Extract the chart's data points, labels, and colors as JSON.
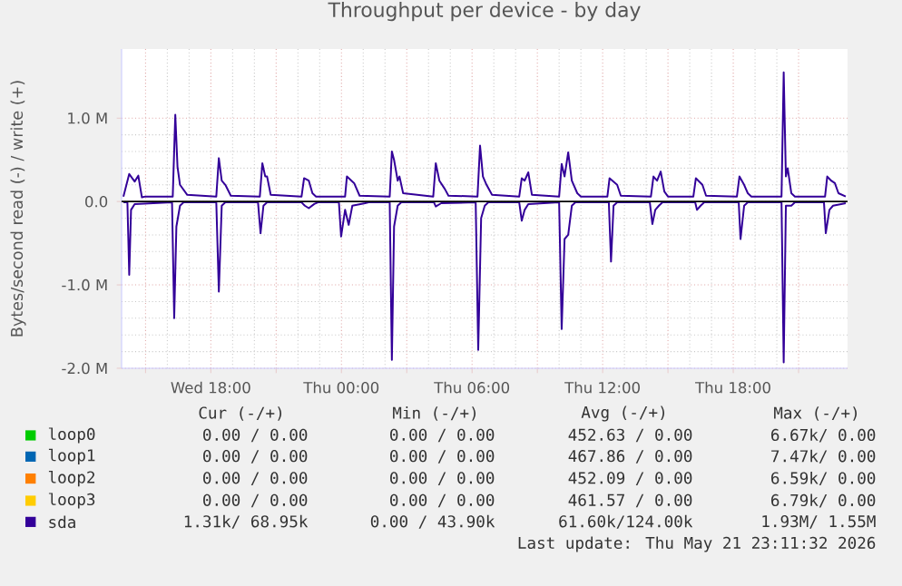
{
  "chart_data": {
    "type": "line",
    "title": "Throughput per device - by day",
    "ylabel": "Bytes/second read (-) / write (+)",
    "xlim": [
      "2026-05-20T13:54",
      "2026-05-21T23:15"
    ],
    "ylim": [
      -2000000,
      1830000
    ],
    "xticks": [
      {
        "value": "2026-05-20T15:00",
        "label": null
      },
      {
        "value": "2026-05-20T18:00",
        "label": "Wed 18:00"
      },
      {
        "value": "2026-05-20T21:00",
        "label": null
      },
      {
        "value": "2026-05-21T00:00",
        "label": "Thu 00:00"
      },
      {
        "value": "2026-05-21T03:00",
        "label": null
      },
      {
        "value": "2026-05-21T06:00",
        "label": "Thu 06:00"
      },
      {
        "value": "2026-05-21T09:00",
        "label": null
      },
      {
        "value": "2026-05-21T12:00",
        "label": "Thu 12:00"
      },
      {
        "value": "2026-05-21T15:00",
        "label": null
      },
      {
        "value": "2026-05-21T18:00",
        "label": "Thu 18:00"
      },
      {
        "value": "2026-05-21T21:00",
        "label": null
      }
    ],
    "yticks": [
      {
        "value": -2000000,
        "label": "-2.0 M"
      },
      {
        "value": -1000000,
        "label": "-1.0 M"
      },
      {
        "value": 0,
        "label": "0.0"
      },
      {
        "value": 1000000,
        "label": "1.0 M"
      }
    ],
    "grid": true,
    "legend": "bottom left",
    "ref_lines": [
      {
        "axis": "y",
        "value": 0,
        "color": "#000000"
      }
    ],
    "series": [
      {
        "name": "loop0",
        "color": "#00cc00"
      },
      {
        "name": "loop1",
        "color": "#0066b3"
      },
      {
        "name": "loop2",
        "color": "#ff8000"
      },
      {
        "name": "loop3",
        "color": "#ffcc00"
      },
      {
        "color": "#330099",
        "x": [
          "2026-05-20T13:59",
          "2026-05-20T14:10",
          "2026-05-20T14:15",
          "2026-05-20T14:20",
          "2026-05-20T14:30",
          "2026-05-20T16:13",
          "2026-05-20T16:19",
          "2026-05-20T16:25",
          "2026-05-20T16:35",
          "2026-05-20T16:45",
          "2026-05-20T18:15",
          "2026-05-20T18:22",
          "2026-05-20T18:30",
          "2026-05-20T18:40",
          "2026-05-20T20:10",
          "2026-05-20T20:17",
          "2026-05-20T20:25",
          "2026-05-20T20:35",
          "2026-05-20T22:10",
          "2026-05-20T22:19",
          "2026-05-20T22:30",
          "2026-05-20T22:45",
          "2026-05-20T22:55",
          "2026-05-20T23:53",
          "2026-05-20T23:59",
          "2026-05-21T00:10",
          "2026-05-21T00:20",
          "2026-05-21T00:30",
          "2026-05-21T01:05",
          "2026-05-21T01:15",
          "2026-05-21T02:13",
          "2026-05-21T02:19",
          "2026-05-21T02:25",
          "2026-05-21T02:35",
          "2026-05-21T02:45",
          "2026-05-21T04:15",
          "2026-05-21T04:20",
          "2026-05-21T04:35",
          "2026-05-21T06:10",
          "2026-05-21T06:17",
          "2026-05-21T06:25",
          "2026-05-21T06:35",
          "2026-05-21T06:45",
          "2026-05-21T08:10",
          "2026-05-21T08:17",
          "2026-05-21T08:25",
          "2026-05-21T08:35",
          "2026-05-21T10:00",
          "2026-05-21T10:07",
          "2026-05-21T10:15",
          "2026-05-21T10:25",
          "2026-05-21T10:35",
          "2026-05-21T10:45",
          "2026-05-21T12:17",
          "2026-05-21T12:23",
          "2026-05-21T12:30",
          "2026-05-21T12:40",
          "2026-05-21T14:10",
          "2026-05-21T14:17",
          "2026-05-21T14:25",
          "2026-05-21T14:35",
          "2026-05-21T14:45",
          "2026-05-21T16:15",
          "2026-05-21T16:20",
          "2026-05-21T16:30",
          "2026-05-21T16:40",
          "2026-05-21T18:15",
          "2026-05-21T18:20",
          "2026-05-21T18:30",
          "2026-05-21T18:40",
          "2026-05-21T20:13",
          "2026-05-21T20:19",
          "2026-05-21T20:25",
          "2026-05-21T20:40",
          "2026-05-21T20:50",
          "2026-05-21T22:10",
          "2026-05-21T22:15",
          "2026-05-21T22:25",
          "2026-05-21T22:35",
          "2026-05-21T23:10"
        ],
        "values": [
          -10000,
          -10000,
          -880000,
          -100000,
          -30000,
          -10000,
          -1400000,
          -300000,
          -50000,
          -10000,
          -10000,
          -1080000,
          -50000,
          -10000,
          -10000,
          -380000,
          -50000,
          -10000,
          -10000,
          -50000,
          -80000,
          -30000,
          -10000,
          -10000,
          -420000,
          -100000,
          -280000,
          -50000,
          -20000,
          -10000,
          -10000,
          -1900000,
          -300000,
          -50000,
          -10000,
          -10000,
          -60000,
          -20000,
          -10000,
          -1780000,
          -200000,
          -50000,
          -10000,
          -10000,
          -230000,
          -100000,
          -30000,
          -10000,
          -1530000,
          -450000,
          -400000,
          -50000,
          -10000,
          -10000,
          -720000,
          -50000,
          -10000,
          -10000,
          -270000,
          -100000,
          -50000,
          -10000,
          -10000,
          -100000,
          -50000,
          -10000,
          -10000,
          -450000,
          -50000,
          -10000,
          -10000,
          -1930000,
          -50000,
          -50000,
          -10000,
          -10000,
          -380000,
          -100000,
          -50000,
          -20000
        ]
      },
      {
        "name": "sda",
        "color": "#330099",
        "x": [
          "2026-05-20T13:59",
          "2026-05-20T14:15",
          "2026-05-20T14:30",
          "2026-05-20T14:40",
          "2026-05-20T14:50",
          "2026-05-20T15:00",
          "2026-05-20T16:15",
          "2026-05-20T16:22",
          "2026-05-20T16:28",
          "2026-05-20T16:35",
          "2026-05-20T16:55",
          "2026-05-20T18:15",
          "2026-05-20T18:22",
          "2026-05-20T18:30",
          "2026-05-20T18:40",
          "2026-05-20T18:55",
          "2026-05-20T20:15",
          "2026-05-20T20:22",
          "2026-05-20T20:30",
          "2026-05-20T20:35",
          "2026-05-20T20:45",
          "2026-05-20T22:10",
          "2026-05-20T22:17",
          "2026-05-20T22:30",
          "2026-05-20T22:40",
          "2026-05-20T22:50",
          "2026-05-21T00:10",
          "2026-05-21T00:15",
          "2026-05-21T00:35",
          "2026-05-21T00:50",
          "2026-05-21T02:13",
          "2026-05-21T02:19",
          "2026-05-21T02:25",
          "2026-05-21T02:35",
          "2026-05-21T02:40",
          "2026-05-21T02:50",
          "2026-05-21T04:13",
          "2026-05-21T04:20",
          "2026-05-21T04:30",
          "2026-05-21T04:45",
          "2026-05-21T04:55",
          "2026-05-21T06:15",
          "2026-05-21T06:22",
          "2026-05-21T06:30",
          "2026-05-21T06:40",
          "2026-05-21T06:55",
          "2026-05-21T08:10",
          "2026-05-21T08:17",
          "2026-05-21T08:25",
          "2026-05-21T08:35",
          "2026-05-21T08:45",
          "2026-05-21T10:00",
          "2026-05-21T10:07",
          "2026-05-21T10:15",
          "2026-05-21T10:25",
          "2026-05-21T10:35",
          "2026-05-21T10:50",
          "2026-05-21T11:00",
          "2026-05-21T12:13",
          "2026-05-21T12:19",
          "2026-05-21T12:40",
          "2026-05-21T12:50",
          "2026-05-21T14:13",
          "2026-05-21T14:20",
          "2026-05-21T14:30",
          "2026-05-21T14:40",
          "2026-05-21T14:50",
          "2026-05-21T15:00",
          "2026-05-21T16:10",
          "2026-05-21T16:17",
          "2026-05-21T16:35",
          "2026-05-21T16:45",
          "2026-05-21T18:10",
          "2026-05-21T18:17",
          "2026-05-21T18:30",
          "2026-05-21T18:40",
          "2026-05-21T18:50",
          "2026-05-21T20:13",
          "2026-05-21T20:19",
          "2026-05-21T20:25",
          "2026-05-21T20:30",
          "2026-05-21T20:40",
          "2026-05-21T20:50",
          "2026-05-21T22:13",
          "2026-05-21T22:19",
          "2026-05-21T22:30",
          "2026-05-21T22:40",
          "2026-05-21T22:50",
          "2026-05-21T23:10"
        ],
        "values": [
          60000,
          330000,
          240000,
          310000,
          50000,
          60000,
          60000,
          1040000,
          420000,
          200000,
          80000,
          60000,
          520000,
          250000,
          200000,
          70000,
          60000,
          460000,
          300000,
          300000,
          80000,
          60000,
          280000,
          250000,
          100000,
          60000,
          60000,
          300000,
          220000,
          70000,
          60000,
          600000,
          500000,
          250000,
          300000,
          100000,
          60000,
          460000,
          250000,
          150000,
          70000,
          60000,
          670000,
          300000,
          200000,
          80000,
          60000,
          280000,
          250000,
          350000,
          80000,
          60000,
          450000,
          300000,
          590000,
          250000,
          100000,
          60000,
          60000,
          280000,
          200000,
          70000,
          60000,
          300000,
          250000,
          360000,
          120000,
          60000,
          60000,
          280000,
          200000,
          70000,
          60000,
          300000,
          200000,
          100000,
          60000,
          60000,
          1550000,
          300000,
          400000,
          100000,
          60000,
          60000,
          300000,
          250000,
          220000,
          100000,
          60000
        ]
      }
    ],
    "annotations": [
      "Cur (-/+)",
      "Min (-/+)",
      "Avg (-/+)",
      "Max (-/+)",
      "0.00 / 0.00",
      "0.00 / 0.00",
      "452.63 / 0.00",
      "6.67k/ 0.00",
      "0.00 / 0.00",
      "0.00 / 0.00",
      "467.86 / 0.00",
      "7.47k/ 0.00",
      "0.00 / 0.00",
      "0.00 / 0.00",
      "452.09 / 0.00",
      "6.59k/ 0.00",
      "0.00 / 0.00",
      "0.00 / 0.00",
      "461.57 / 0.00",
      "6.79k/ 0.00",
      "1.31k/ 68.95k",
      "0.00 / 43.90k",
      "61.60k/124.00k",
      "1.93M/ 1.55M",
      "Last update: Thu May 21 23:11:32 2026"
    ]
  }
}
